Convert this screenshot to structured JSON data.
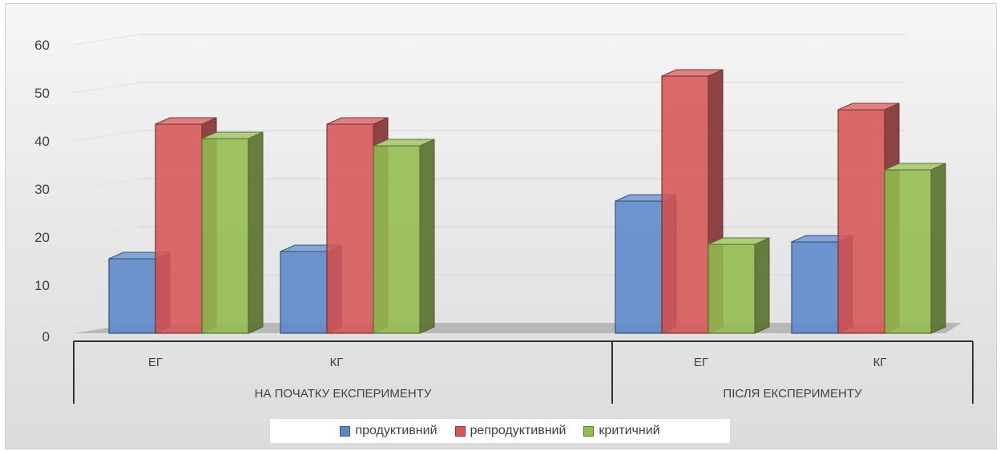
{
  "chart_data": {
    "type": "bar",
    "categories": [
      "ЕГ",
      "КГ",
      "ЕГ",
      "КГ"
    ],
    "groups": [
      {
        "label": "НА ПОЧАТКУ ЕКСПЕРИМЕНТУ",
        "categories": [
          "ЕГ",
          "КГ"
        ]
      },
      {
        "label": "ПІСЛЯ ЕКСПЕРИМЕНТУ",
        "categories": [
          "ЕГ",
          "КГ"
        ]
      }
    ],
    "series": [
      {
        "name": "продуктивний",
        "color": "#5b87c9",
        "values": [
          15.5,
          17,
          27.5,
          19
        ]
      },
      {
        "name": "репродуктивний",
        "color": "#d65555",
        "values": [
          43.5,
          43.5,
          53.5,
          46.5
        ]
      },
      {
        "name": "критичний",
        "color": "#93bb4f",
        "values": [
          40.5,
          39,
          18.5,
          34
        ]
      }
    ],
    "ylim": [
      0,
      60
    ],
    "yticks": [
      0,
      10,
      20,
      30,
      40,
      50,
      60
    ],
    "grid": true,
    "legend": "bottom",
    "style": "3d-clustered-column"
  }
}
